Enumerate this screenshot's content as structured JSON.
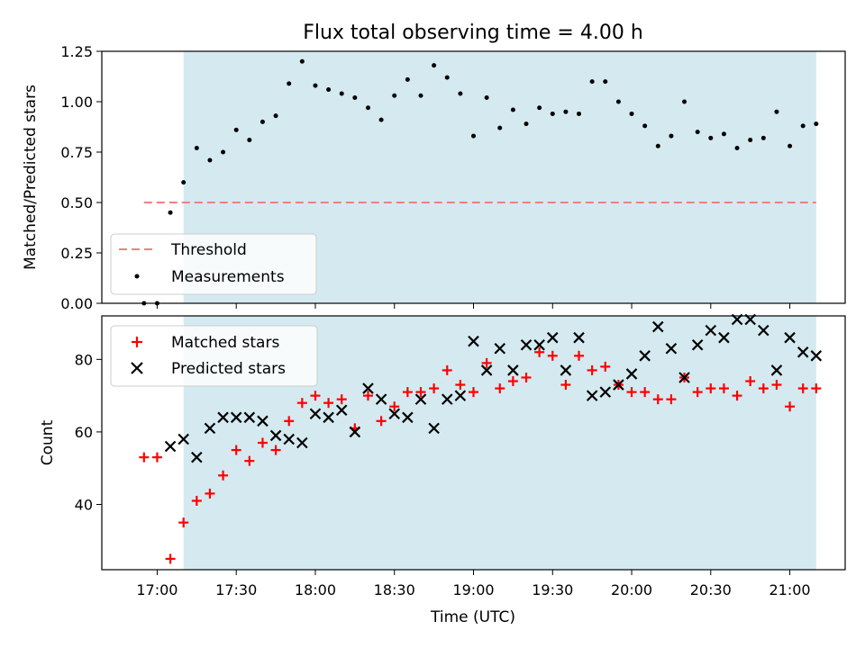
{
  "chart_data": {
    "title": "Flux total observing time = 4.00 h",
    "xlabel": "Time (UTC)",
    "x_ticks": [
      "17:00",
      "17:30",
      "18:00",
      "18:30",
      "19:00",
      "19:30",
      "20:00",
      "20:30",
      "21:00"
    ],
    "xlim": [
      "16:39",
      "21:21"
    ],
    "shaded_region": {
      "start": "17:10",
      "end": "21:10",
      "color": "#d4eaf0"
    },
    "top": {
      "type": "scatter",
      "ylabel": "Matched/Predicted stars",
      "ylim": [
        0,
        1.25
      ],
      "y_ticks": [
        "0.00",
        "0.25",
        "0.50",
        "0.75",
        "1.00",
        "1.25"
      ],
      "threshold": {
        "name": "Threshold",
        "value": 0.5,
        "x_start": "16:55",
        "x_end": "21:10",
        "color": "#f08080"
      },
      "series": [
        {
          "name": "Measurements",
          "color": "#000000",
          "points": [
            [
              "16:55",
              0.0
            ],
            [
              "17:00",
              0.0
            ],
            [
              "17:05",
              0.45
            ],
            [
              "17:10",
              0.6
            ],
            [
              "17:15",
              0.77
            ],
            [
              "17:20",
              0.71
            ],
            [
              "17:25",
              0.75
            ],
            [
              "17:30",
              0.86
            ],
            [
              "17:35",
              0.81
            ],
            [
              "17:40",
              0.9
            ],
            [
              "17:45",
              0.93
            ],
            [
              "17:50",
              1.09
            ],
            [
              "17:55",
              1.2
            ],
            [
              "18:00",
              1.08
            ],
            [
              "18:05",
              1.06
            ],
            [
              "18:10",
              1.04
            ],
            [
              "18:15",
              1.02
            ],
            [
              "18:20",
              0.97
            ],
            [
              "18:25",
              0.91
            ],
            [
              "18:30",
              1.03
            ],
            [
              "18:35",
              1.11
            ],
            [
              "18:40",
              1.03
            ],
            [
              "18:45",
              1.18
            ],
            [
              "18:50",
              1.12
            ],
            [
              "18:55",
              1.04
            ],
            [
              "19:00",
              0.83
            ],
            [
              "19:05",
              1.02
            ],
            [
              "19:10",
              0.87
            ],
            [
              "19:15",
              0.96
            ],
            [
              "19:20",
              0.89
            ],
            [
              "19:25",
              0.97
            ],
            [
              "19:30",
              0.94
            ],
            [
              "19:35",
              0.95
            ],
            [
              "19:40",
              0.94
            ],
            [
              "19:45",
              1.1
            ],
            [
              "19:50",
              1.1
            ],
            [
              "19:55",
              1.0
            ],
            [
              "20:00",
              0.94
            ],
            [
              "20:05",
              0.88
            ],
            [
              "20:10",
              0.78
            ],
            [
              "20:15",
              0.83
            ],
            [
              "20:20",
              1.0
            ],
            [
              "20:25",
              0.85
            ],
            [
              "20:30",
              0.82
            ],
            [
              "20:35",
              0.84
            ],
            [
              "20:40",
              0.77
            ],
            [
              "20:45",
              0.81
            ],
            [
              "20:50",
              0.82
            ],
            [
              "20:55",
              0.95
            ],
            [
              "21:00",
              0.78
            ],
            [
              "21:05",
              0.88
            ],
            [
              "21:10",
              0.89
            ]
          ]
        }
      ],
      "legend": {
        "placement": "bottom-left",
        "items": [
          "Threshold",
          "Measurements"
        ]
      }
    },
    "bottom": {
      "type": "scatter",
      "ylabel": "Count",
      "ylim": [
        22,
        92
      ],
      "y_ticks": [
        "40",
        "60",
        "80"
      ],
      "series": [
        {
          "name": "Matched stars",
          "marker": "plus",
          "color": "#ff0000",
          "points": [
            [
              "16:55",
              53
            ],
            [
              "17:00",
              53
            ],
            [
              "17:05",
              25
            ],
            [
              "17:10",
              35
            ],
            [
              "17:15",
              41
            ],
            [
              "17:20",
              43
            ],
            [
              "17:25",
              48
            ],
            [
              "17:30",
              55
            ],
            [
              "17:35",
              52
            ],
            [
              "17:40",
              57
            ],
            [
              "17:45",
              55
            ],
            [
              "17:50",
              63
            ],
            [
              "17:55",
              68
            ],
            [
              "18:00",
              70
            ],
            [
              "18:05",
              68
            ],
            [
              "18:10",
              69
            ],
            [
              "18:15",
              61
            ],
            [
              "18:20",
              70
            ],
            [
              "18:25",
              63
            ],
            [
              "18:30",
              67
            ],
            [
              "18:35",
              71
            ],
            [
              "18:40",
              71
            ],
            [
              "18:45",
              72
            ],
            [
              "18:50",
              77
            ],
            [
              "18:55",
              73
            ],
            [
              "19:00",
              71
            ],
            [
              "19:05",
              79
            ],
            [
              "19:10",
              72
            ],
            [
              "19:15",
              74
            ],
            [
              "19:20",
              75
            ],
            [
              "19:25",
              82
            ],
            [
              "19:30",
              81
            ],
            [
              "19:35",
              73
            ],
            [
              "19:40",
              81
            ],
            [
              "19:45",
              77
            ],
            [
              "19:50",
              78
            ],
            [
              "19:55",
              73
            ],
            [
              "20:00",
              71
            ],
            [
              "20:05",
              71
            ],
            [
              "20:10",
              69
            ],
            [
              "20:15",
              69
            ],
            [
              "20:20",
              75
            ],
            [
              "20:25",
              71
            ],
            [
              "20:30",
              72
            ],
            [
              "20:35",
              72
            ],
            [
              "20:40",
              70
            ],
            [
              "20:45",
              74
            ],
            [
              "20:50",
              72
            ],
            [
              "20:55",
              73
            ],
            [
              "21:00",
              67
            ],
            [
              "21:05",
              72
            ],
            [
              "21:10",
              72
            ]
          ]
        },
        {
          "name": "Predicted stars",
          "marker": "x",
          "color": "#000000",
          "points": [
            [
              "17:05",
              56
            ],
            [
              "17:10",
              58
            ],
            [
              "17:15",
              53
            ],
            [
              "17:20",
              61
            ],
            [
              "17:25",
              64
            ],
            [
              "17:30",
              64
            ],
            [
              "17:35",
              64
            ],
            [
              "17:40",
              63
            ],
            [
              "17:45",
              59
            ],
            [
              "17:50",
              58
            ],
            [
              "17:55",
              57
            ],
            [
              "18:00",
              65
            ],
            [
              "18:05",
              64
            ],
            [
              "18:10",
              66
            ],
            [
              "18:15",
              60
            ],
            [
              "18:20",
              72
            ],
            [
              "18:25",
              69
            ],
            [
              "18:30",
              65
            ],
            [
              "18:35",
              64
            ],
            [
              "18:40",
              69
            ],
            [
              "18:45",
              61
            ],
            [
              "18:50",
              69
            ],
            [
              "18:55",
              70
            ],
            [
              "19:00",
              85
            ],
            [
              "19:05",
              77
            ],
            [
              "19:10",
              83
            ],
            [
              "19:15",
              77
            ],
            [
              "19:20",
              84
            ],
            [
              "19:25",
              84
            ],
            [
              "19:30",
              86
            ],
            [
              "19:35",
              77
            ],
            [
              "19:40",
              86
            ],
            [
              "19:45",
              70
            ],
            [
              "19:50",
              71
            ],
            [
              "19:55",
              73
            ],
            [
              "20:00",
              76
            ],
            [
              "20:05",
              81
            ],
            [
              "20:10",
              89
            ],
            [
              "20:15",
              83
            ],
            [
              "20:20",
              75
            ],
            [
              "20:25",
              84
            ],
            [
              "20:30",
              88
            ],
            [
              "20:35",
              86
            ],
            [
              "20:40",
              91
            ],
            [
              "20:45",
              91
            ],
            [
              "20:50",
              88
            ],
            [
              "20:55",
              77
            ],
            [
              "21:00",
              86
            ],
            [
              "21:05",
              82
            ],
            [
              "21:10",
              81
            ]
          ]
        }
      ],
      "legend": {
        "placement": "top-left",
        "items": [
          "Matched stars",
          "Predicted stars"
        ]
      }
    }
  }
}
